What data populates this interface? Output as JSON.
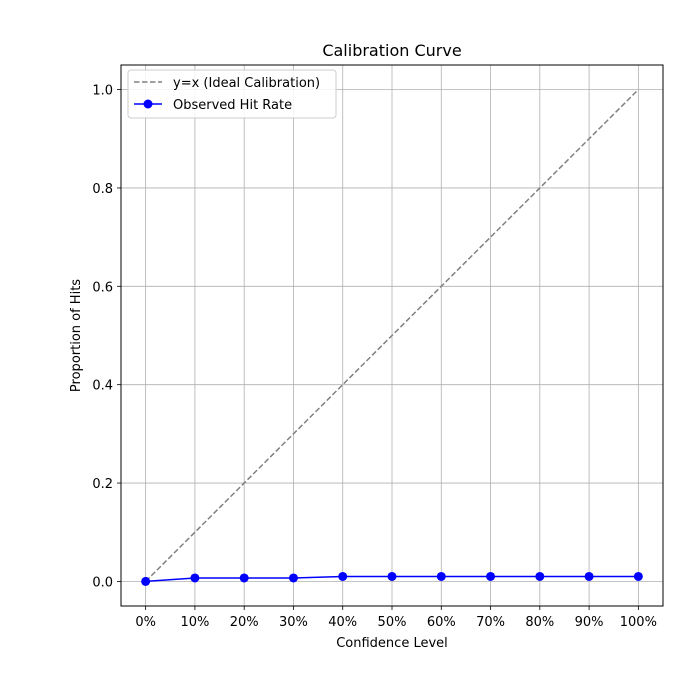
{
  "chart_data": {
    "type": "line",
    "title": "Calibration Curve",
    "xlabel": "Confidence Level",
    "ylabel": "Proportion of Hits",
    "x": [
      0,
      0.1,
      0.2,
      0.3,
      0.4,
      0.5,
      0.6,
      0.7,
      0.8,
      0.9,
      1.0
    ],
    "x_tick_labels": [
      "0%",
      "10%",
      "20%",
      "30%",
      "40%",
      "50%",
      "60%",
      "70%",
      "80%",
      "90%",
      "100%"
    ],
    "y_ticks": [
      0.0,
      0.2,
      0.4,
      0.6,
      0.8,
      1.0
    ],
    "y_tick_labels": [
      "0.0",
      "0.2",
      "0.4",
      "0.6",
      "0.8",
      "1.0"
    ],
    "xlim": [
      -0.05,
      1.05
    ],
    "ylim": [
      -0.05,
      1.05
    ],
    "grid": true,
    "legend_position": "top-left",
    "series": [
      {
        "name": "y=x (Ideal Calibration)",
        "style": "dashed",
        "color": "#808080",
        "marker": "none",
        "values": [
          0,
          0.1,
          0.2,
          0.3,
          0.4,
          0.5,
          0.6,
          0.7,
          0.8,
          0.9,
          1.0
        ]
      },
      {
        "name": "Observed Hit Rate",
        "style": "solid",
        "color": "#0000ff",
        "marker": "circle",
        "values": [
          0.0,
          0.007,
          0.007,
          0.007,
          0.01,
          0.01,
          0.01,
          0.01,
          0.01,
          0.01,
          0.01
        ]
      }
    ]
  }
}
